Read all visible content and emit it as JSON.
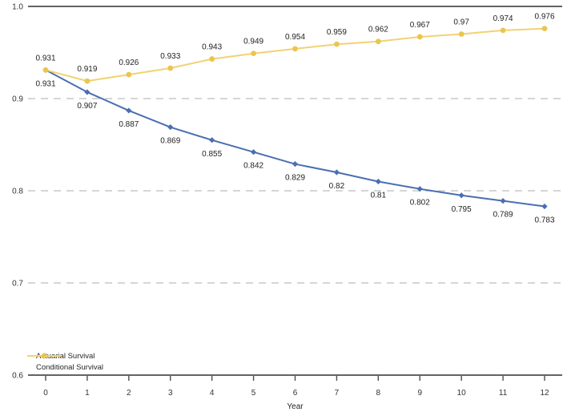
{
  "colors": {
    "actuarial_blue": "#4a6fb1",
    "conditional_yellow_line": "#f2d272",
    "conditional_yellow_marker": "#eac550",
    "gridline_gray": "#c9c9c9",
    "axis_gray": "#4d4d4d",
    "label_text": "#1f1f1f"
  },
  "chart_data": {
    "type": "line",
    "title": "",
    "xlabel": "Year",
    "ylabel": "",
    "xlim": [
      0,
      12
    ],
    "ylim": [
      0.6,
      1.0
    ],
    "grid": "horizontal dashed gridlines at 0.7, 0.8, 0.9; solid rules at 0.6 and 1.0",
    "legend_position": "bottom-left",
    "x": [
      0,
      1,
      2,
      3,
      4,
      5,
      6,
      7,
      8,
      9,
      10,
      11,
      12
    ],
    "xticks": [
      "0",
      "1",
      "2",
      "3",
      "4",
      "5",
      "6",
      "7",
      "8",
      "9",
      "10",
      "11",
      "12"
    ],
    "yticks": [
      "1.0",
      "0.9",
      "0.8",
      "0.7",
      "0.6"
    ],
    "ytick_values": [
      1.0,
      0.9,
      0.8,
      0.7,
      0.6
    ],
    "series": [
      {
        "name": "Actuarial Survival",
        "marker": "diamond",
        "line_color": "#4a6fb1",
        "marker_color": "#4a6fb1",
        "label_side": "below",
        "values": [
          0.931,
          0.907,
          0.887,
          0.869,
          0.855,
          0.842,
          0.829,
          0.82,
          0.81,
          0.802,
          0.795,
          0.789,
          0.783
        ],
        "labels": [
          "0.931",
          "0.907",
          "0.887",
          "0.869",
          "0.855",
          "0.842",
          "0.829",
          "0.82",
          "0.81",
          "0.802",
          "0.795",
          "0.789",
          "0.783"
        ]
      },
      {
        "name": "Conditional Survival",
        "marker": "circle",
        "line_color": "#f2d272",
        "marker_color": "#eac550",
        "label_side": "above",
        "values": [
          0.931,
          0.919,
          0.926,
          0.933,
          0.943,
          0.949,
          0.954,
          0.959,
          0.962,
          0.967,
          0.97,
          0.974,
          0.976
        ],
        "labels": [
          "0.931",
          "0.919",
          "0.926",
          "0.933",
          "0.943",
          "0.949",
          "0.954",
          "0.959",
          "0.962",
          "0.967",
          "0.97",
          "0.974",
          "0.976"
        ]
      }
    ]
  }
}
